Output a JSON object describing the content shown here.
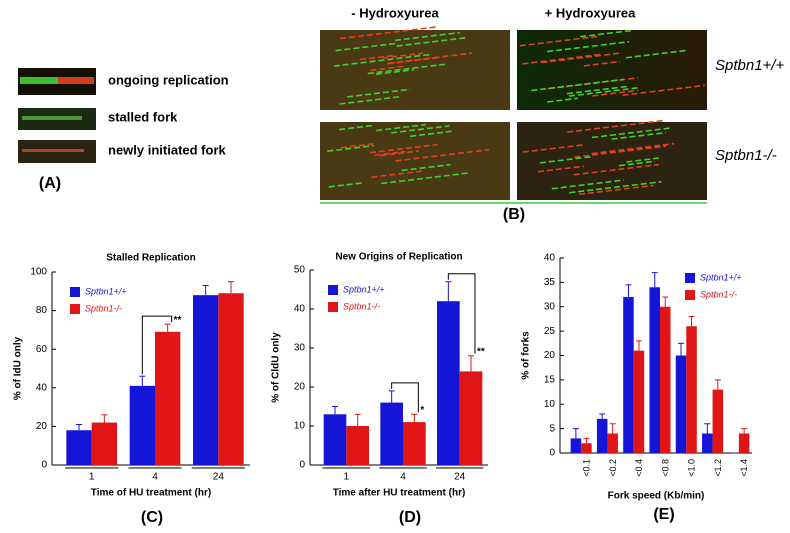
{
  "panels": {
    "a_labels": [
      "ongoing replication",
      "stalled fork",
      "newly initiated fork"
    ],
    "a_tag": "(A)",
    "b_conditions": [
      "- Hydroxyurea",
      "+ Hydroxyurea"
    ],
    "b_genotypes": [
      "Sptbn1+/+",
      "Sptbn1-/-"
    ],
    "b_tag": "(B)",
    "chart_tags": [
      "(C)",
      "(D)",
      "(E)"
    ]
  },
  "chart_data": [
    {
      "type": "bar",
      "title": "Stalled Replication",
      "x_label": "Time of HU treatment (hr)",
      "y_label": "% of IdU only",
      "categories": [
        "1",
        "4",
        "24"
      ],
      "series": [
        {
          "name": "Sptbn1+/+",
          "color": "#1515d8",
          "values": [
            18,
            41,
            88
          ],
          "errors": [
            3,
            5,
            5
          ]
        },
        {
          "name": "Sptbn1-/-",
          "color": "#e01515",
          "values": [
            22,
            69,
            89
          ],
          "errors": [
            4,
            4,
            6
          ]
        }
      ],
      "significance": [
        null,
        "**",
        null
      ],
      "ylim": [
        0,
        100
      ],
      "yticks": [
        0,
        20,
        40,
        60,
        80,
        100
      ]
    },
    {
      "type": "bar",
      "title": "New Origins of Replication",
      "x_label": "Time after HU treatment (hr)",
      "y_label": "% of CldU only",
      "categories": [
        "1",
        "4",
        "24"
      ],
      "series": [
        {
          "name": "Sptbn1+/+",
          "color": "#1515d8",
          "values": [
            13,
            16,
            42
          ],
          "errors": [
            2,
            3,
            5
          ]
        },
        {
          "name": "Sptbn1-/-",
          "color": "#e01515",
          "values": [
            10,
            11,
            24
          ],
          "errors": [
            3,
            2,
            4
          ]
        }
      ],
      "significance": [
        null,
        "*",
        "**"
      ],
      "ylim": [
        0,
        50
      ],
      "yticks": [
        0,
        10,
        20,
        30,
        40,
        50
      ]
    },
    {
      "type": "bar",
      "x_label": "Fork speed (Kb/min)",
      "y_label": "% of forks",
      "categories": [
        "<0.1",
        "<0.2",
        "<0.4",
        "<0.8",
        "<1.0",
        "<1.2",
        "<1.4"
      ],
      "series": [
        {
          "name": "Sptbn1+/+",
          "color": "#1515d8",
          "values": [
            3,
            7,
            32,
            34,
            20,
            4,
            0
          ],
          "errors": [
            2,
            1,
            2.5,
            3,
            2.5,
            2,
            0
          ]
        },
        {
          "name": "Sptbn1-/-",
          "color": "#e01515",
          "values": [
            2,
            4,
            21,
            30,
            26,
            13,
            4
          ],
          "errors": [
            1,
            2,
            2,
            2,
            2,
            2,
            1
          ]
        }
      ],
      "rotate_xticks": true,
      "ylim": [
        0,
        40
      ],
      "yticks": [
        0,
        5,
        10,
        15,
        20,
        25,
        30,
        35,
        40
      ]
    }
  ]
}
